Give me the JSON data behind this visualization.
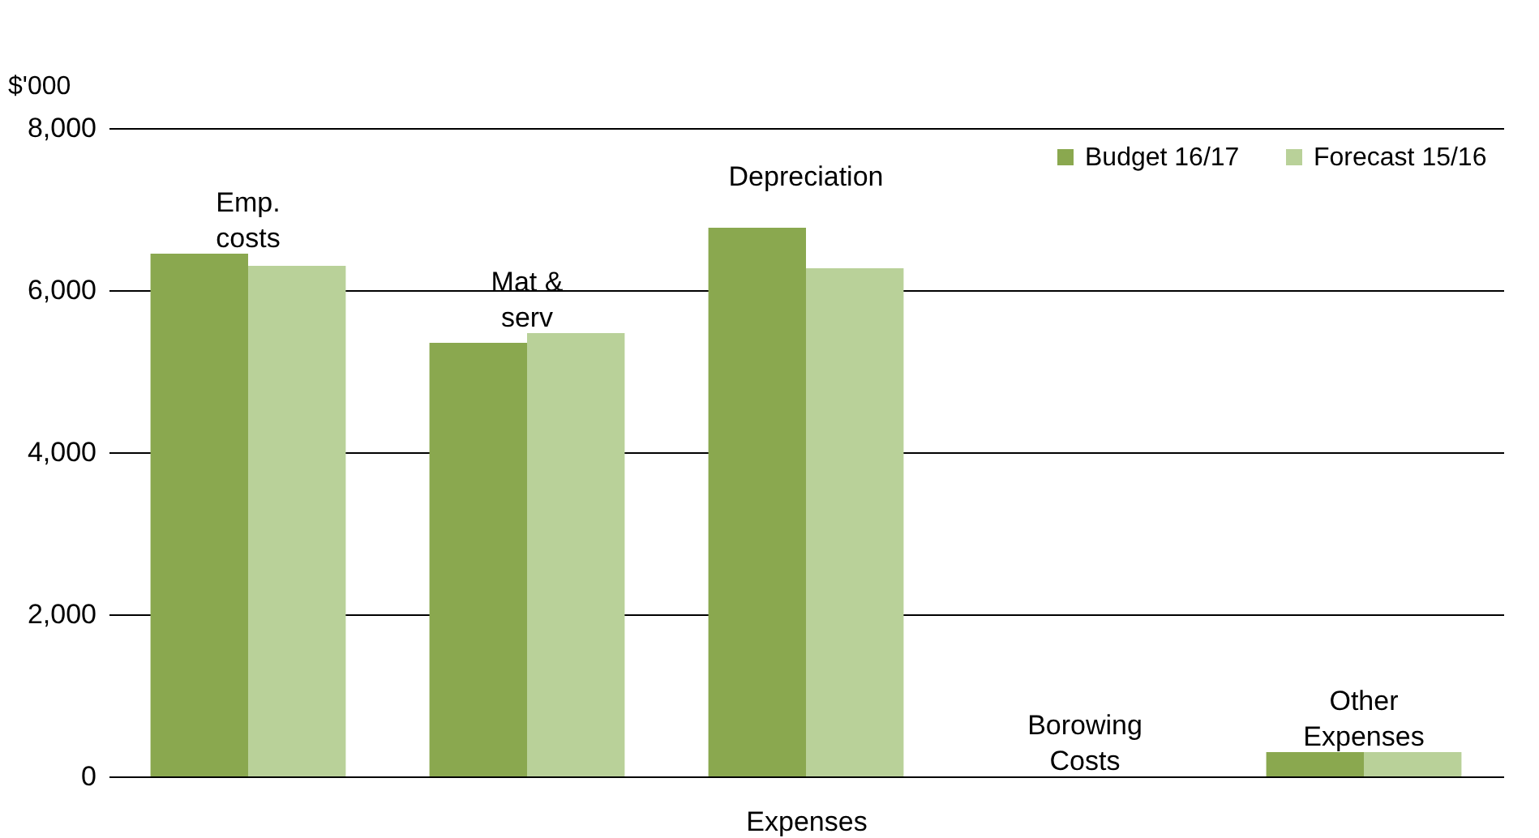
{
  "chart_data": {
    "type": "bar",
    "xlabel": "Expenses",
    "ylabel": "$'000",
    "categories": [
      "Emp. costs",
      "Mat & serv",
      "Depreciation",
      "Borowing Costs",
      "Other Expenses"
    ],
    "series": [
      {
        "name": "Budget 16/17",
        "color": "#8aa84f",
        "values": [
          6450,
          5350,
          6770,
          0,
          300
        ]
      },
      {
        "name": "Forecast 15/16",
        "color": "#b9d199",
        "values": [
          6300,
          5470,
          6270,
          0,
          300
        ]
      }
    ],
    "ylim": [
      0,
      8000
    ],
    "yticks": [
      0,
      {
        "value": 2000,
        "label": "2,000"
      },
      {
        "value": 4000,
        "label": "4,000"
      },
      {
        "value": 6000,
        "label": "6,000"
      },
      {
        "value": 8000,
        "label": "8,000"
      }
    ],
    "grid": "y",
    "legend": "top right"
  }
}
